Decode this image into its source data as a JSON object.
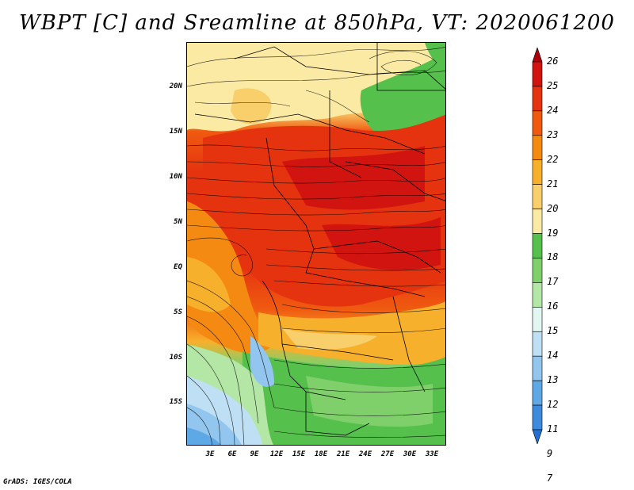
{
  "title": "WBPT [C] and Sreamline at 850hPa, VT: 2020061200",
  "footer": "GrADS: IGES/COLA",
  "lat_labels": [
    "20N",
    "15N",
    "10N",
    "5N",
    "EQ",
    "5S",
    "10S",
    "15S"
  ],
  "lon_labels": [
    "3E",
    "6E",
    "9E",
    "12E",
    "15E",
    "18E",
    "21E",
    "24E",
    "27E",
    "30E",
    "33E"
  ],
  "colorbar": {
    "labels": [
      "26",
      "25",
      "24",
      "23",
      "22",
      "21",
      "20",
      "19",
      "18",
      "17",
      "16",
      "15",
      "14",
      "13",
      "12",
      "11",
      "9",
      "7"
    ],
    "colors": [
      "#b0000b",
      "#d21410",
      "#e5330f",
      "#f05a10",
      "#f58a12",
      "#f7b02c",
      "#f8cf6a",
      "#fbeaa4",
      "#56c04c",
      "#7fd06b",
      "#b4e6a6",
      "#e2f6f2",
      "#bfe0f4",
      "#92c6ee",
      "#5fa8e6",
      "#3e8add",
      "#246fd4"
    ]
  }
}
